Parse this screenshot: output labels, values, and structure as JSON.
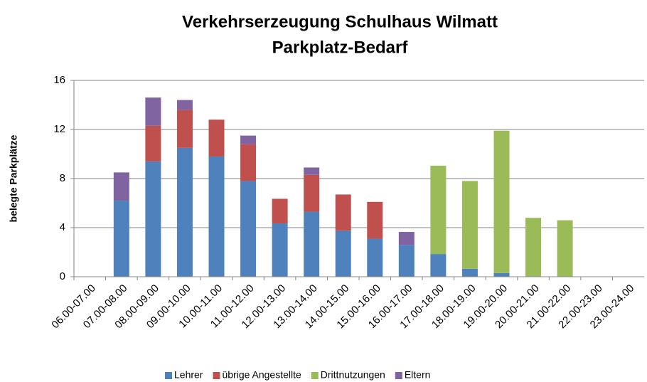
{
  "chart_data": {
    "type": "bar",
    "stacked": true,
    "title": "Verkehrserzeugung Schulhaus Wilmatt",
    "subtitle": "Parkplatz-Bedarf",
    "y_label": "belegte Parkplätze",
    "categories": [
      "06.00-07.00",
      "07.00-08.00",
      "08.00-09.00",
      "09.00-10.00",
      "10.00-11.00",
      "11.00-12.00",
      "12.00-13.00",
      "13.00-14.00",
      "14.00-15.00",
      "15.00-16.00",
      "16.00-17.00",
      "17.00-18.00",
      "18.00-19.00",
      "19.00-20.00",
      "20.00-21.00",
      "21.00-22.00",
      "22.00-23.00",
      "23.00-24.00"
    ],
    "series": [
      {
        "name": "Lehrer",
        "color": "#4f81bd",
        "values": [
          0,
          6.2,
          9.4,
          10.5,
          9.8,
          7.8,
          4.35,
          5.3,
          3.75,
          3.1,
          2.6,
          1.85,
          0.65,
          0.3,
          0,
          0,
          0,
          0
        ]
      },
      {
        "name": "übrige Angestellte",
        "color": "#c0504d",
        "values": [
          0,
          0,
          2.9,
          3.1,
          3.0,
          3.0,
          2.0,
          3.0,
          2.95,
          3.0,
          0,
          0,
          0,
          0,
          0,
          0,
          0,
          0
        ]
      },
      {
        "name": "Drittnutzungen",
        "color": "#9bbb59",
        "values": [
          0,
          0,
          0,
          0,
          0,
          0,
          0,
          0,
          0,
          0,
          0,
          7.2,
          7.15,
          11.6,
          4.8,
          4.6,
          0,
          0
        ]
      },
      {
        "name": "Eltern",
        "color": "#8064a2",
        "values": [
          0,
          2.3,
          2.3,
          0.8,
          0,
          0.7,
          0,
          0.6,
          0,
          0,
          1.05,
          0,
          0,
          0,
          0,
          0,
          0,
          0
        ]
      }
    ],
    "ylim": [
      0,
      16
    ],
    "yticks": [
      0,
      4,
      8,
      12,
      16
    ],
    "grid": true,
    "legend": "bottom"
  }
}
